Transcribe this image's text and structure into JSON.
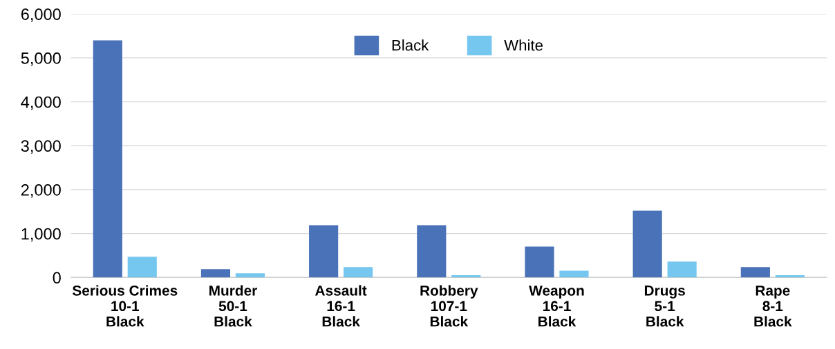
{
  "chart_data": {
    "type": "bar",
    "categories": [
      "Serious Crimes\n10-1\nBlack",
      "Murder\n50-1\nBlack",
      "Assault\n16-1\nBlack",
      "Robbery\n107-1\nBlack",
      "Weapon\n16-1\nBlack",
      "Drugs\n5-1\nBlack",
      "Rape\n8-1\nBlack"
    ],
    "series": [
      {
        "name": "Black",
        "color": "#4a72b8",
        "values": [
          5400,
          190,
          1190,
          1190,
          705,
          1520,
          235
        ]
      },
      {
        "name": "White",
        "color": "#75c7ef",
        "values": [
          470,
          95,
          235,
          50,
          155,
          360,
          50
        ]
      }
    ],
    "ylim": [
      0,
      6000
    ],
    "yticks": [
      {
        "value": 0,
        "label": "0"
      },
      {
        "value": 1000,
        "label": "1,000"
      },
      {
        "value": 2000,
        "label": "2,000"
      },
      {
        "value": 3000,
        "label": "3,000"
      },
      {
        "value": 4000,
        "label": "4,000"
      },
      {
        "value": 5000,
        "label": "5,000"
      },
      {
        "value": 6000,
        "label": "6,000"
      }
    ],
    "grid": "y",
    "legend": "top"
  }
}
